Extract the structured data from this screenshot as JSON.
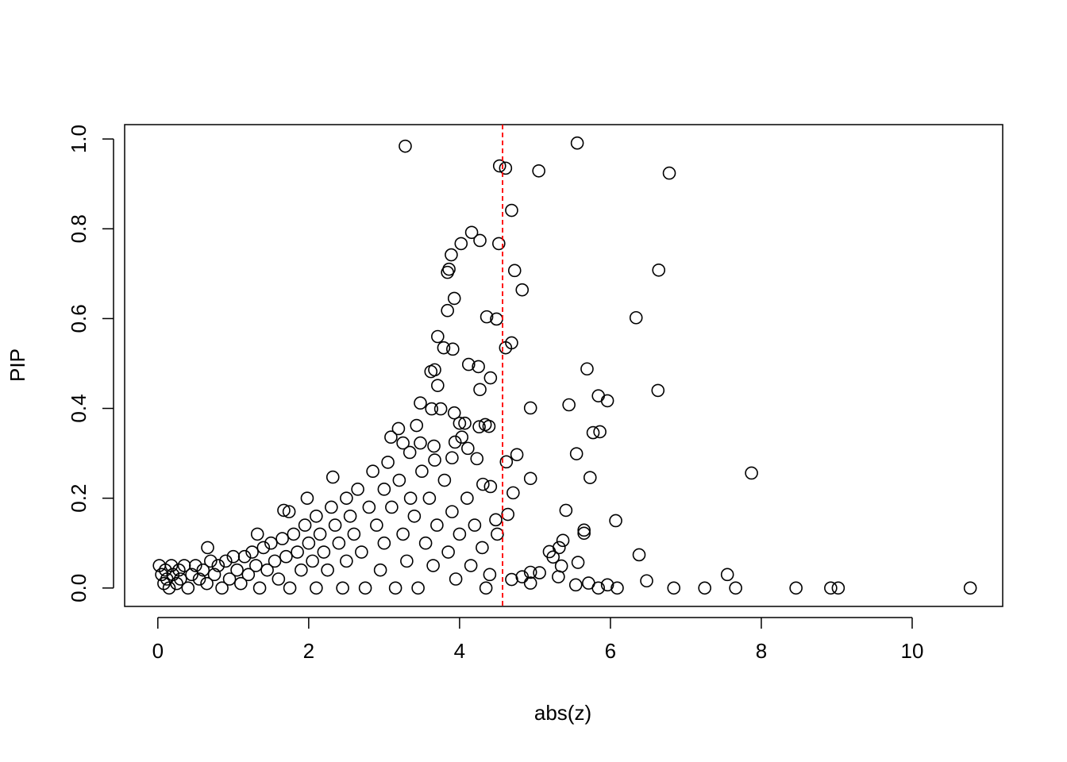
{
  "chart_data": {
    "type": "scatter",
    "x_label": "abs(z)",
    "y_label": "PIP",
    "xlim": [
      -0.44,
      11.2
    ],
    "ylim": [
      -0.041,
      1.032
    ],
    "xticks": [
      0,
      2,
      4,
      6,
      8,
      10
    ],
    "yticks": [
      {
        "value": 0,
        "label": "0.0"
      },
      0.2,
      0.4,
      0.6,
      0.8,
      {
        "value": 1,
        "label": "1.0"
      }
    ],
    "color": "#000000",
    "vline": {
      "x": 4.57,
      "color": "#ff0000",
      "dashed": true
    },
    "x": [
      3.28,
      5.56,
      4.53,
      4.61,
      5.05,
      6.78,
      4.16,
      4.27,
      4.02,
      4.52,
      3.89,
      4.69,
      3.86,
      3.84,
      4.73,
      6.64,
      3.93,
      4.83,
      3.84,
      4.36,
      4.49,
      6.34,
      3.71,
      3.79,
      3.91,
      4.69,
      4.61,
      4.12,
      4.25,
      4.41,
      3.67,
      3.62,
      4.27,
      3.71,
      5.69,
      6.63,
      5.84,
      5.96,
      5.45,
      4.94,
      3.48,
      3.63,
      3.75,
      3.93,
      4.0,
      4.07,
      4.34,
      4.39,
      4.26,
      3.43,
      3.19,
      5.77,
      5.86,
      3.09,
      4.03,
      3.25,
      3.48,
      3.66,
      3.94,
      4.11,
      3.34,
      4.76,
      5.55,
      3.67,
      3.9,
      4.23,
      4.62,
      7.87,
      4.94,
      5.73,
      2.32,
      4.31,
      4.41,
      4.71,
      5.41,
      4.64,
      4.48,
      6.07,
      5.65,
      5.65,
      5.37,
      6.38,
      5.19,
      5.24,
      5.32,
      5.35,
      5.57,
      7.55,
      6.48,
      6.84,
      7.25,
      7.66,
      8.46,
      8.92,
      9.02,
      10.77,
      5.71,
      5.84,
      5.96,
      6.09,
      5.06,
      4.94,
      4.83,
      4.69,
      5.31,
      5.54,
      4.94,
      0.66,
      1.67,
      1.74,
      1.32,
      1.98,
      0.02,
      0.05,
      0.08,
      0.1,
      0.12,
      0.15,
      0.18,
      0.2,
      0.25,
      0.28,
      0.3,
      0.35,
      0.4,
      0.45,
      0.5,
      0.55,
      0.6,
      0.65,
      0.7,
      0.75,
      0.8,
      0.85,
      0.9,
      0.95,
      1.0,
      1.05,
      1.1,
      1.15,
      1.2,
      1.25,
      1.3,
      1.35,
      1.4,
      1.45,
      1.5,
      1.55,
      1.6,
      1.65,
      1.7,
      1.75,
      1.8,
      1.85,
      1.9,
      1.95,
      2.0,
      2.05,
      2.1,
      2.1,
      2.15,
      2.2,
      2.25,
      2.3,
      2.35,
      2.4,
      2.45,
      2.5,
      2.5,
      2.55,
      2.6,
      2.65,
      2.7,
      2.75,
      2.8,
      2.85,
      2.9,
      2.95,
      3.0,
      3.0,
      3.05,
      3.1,
      3.15,
      3.2,
      3.25,
      3.3,
      3.35,
      3.4,
      3.45,
      3.5,
      3.55,
      3.6,
      3.65,
      3.7,
      3.8,
      3.85,
      3.9,
      3.95,
      4.0,
      4.1,
      4.15,
      4.2,
      4.3,
      4.35,
      4.4,
      4.5
    ],
    "y": [
      0.984,
      0.991,
      0.94,
      0.935,
      0.929,
      0.924,
      0.792,
      0.774,
      0.767,
      0.767,
      0.742,
      0.841,
      0.71,
      0.703,
      0.707,
      0.708,
      0.645,
      0.664,
      0.618,
      0.604,
      0.599,
      0.602,
      0.56,
      0.535,
      0.532,
      0.546,
      0.535,
      0.498,
      0.493,
      0.468,
      0.486,
      0.482,
      0.442,
      0.451,
      0.488,
      0.44,
      0.428,
      0.417,
      0.408,
      0.401,
      0.412,
      0.399,
      0.399,
      0.39,
      0.367,
      0.367,
      0.364,
      0.36,
      0.359,
      0.362,
      0.355,
      0.346,
      0.348,
      0.336,
      0.336,
      0.323,
      0.323,
      0.316,
      0.325,
      0.311,
      0.302,
      0.297,
      0.299,
      0.285,
      0.29,
      0.288,
      0.281,
      0.256,
      0.244,
      0.246,
      0.247,
      0.231,
      0.226,
      0.212,
      0.173,
      0.164,
      0.152,
      0.15,
      0.129,
      0.122,
      0.106,
      0.074,
      0.081,
      0.069,
      0.09,
      0.049,
      0.057,
      0.03,
      0.016,
      0,
      0,
      0,
      0,
      0,
      0,
      0,
      0.011,
      0,
      0.007,
      0,
      0.034,
      0.035,
      0.025,
      0.019,
      0.025,
      0.007,
      0.011,
      0.09,
      0.173,
      0.17,
      0.12,
      0.2,
      0.05,
      0.03,
      0.01,
      0.04,
      0.02,
      0,
      0.05,
      0.03,
      0.01,
      0.04,
      0.02,
      0.05,
      0,
      0.03,
      0.05,
      0.02,
      0.04,
      0.01,
      0.06,
      0.03,
      0.05,
      0,
      0.06,
      0.02,
      0.07,
      0.04,
      0.01,
      0.07,
      0.03,
      0.08,
      0.05,
      0,
      0.09,
      0.04,
      0.1,
      0.06,
      0.02,
      0.11,
      0.07,
      0,
      0.12,
      0.08,
      0.04,
      0.14,
      0.1,
      0.06,
      0,
      0.16,
      0.12,
      0.08,
      0.04,
      0.18,
      0.14,
      0.1,
      0,
      0.2,
      0.06,
      0.16,
      0.12,
      0.22,
      0.08,
      0,
      0.18,
      0.26,
      0.14,
      0.04,
      0.22,
      0.1,
      0.28,
      0.18,
      0,
      0.24,
      0.12,
      0.06,
      0.2,
      0.16,
      0,
      0.26,
      0.1,
      0.2,
      0.05,
      0.14,
      0.24,
      0.08,
      0.17,
      0.02,
      0.12,
      0.2,
      0.05,
      0.14,
      0.09,
      0,
      0.03,
      0.12
    ]
  }
}
